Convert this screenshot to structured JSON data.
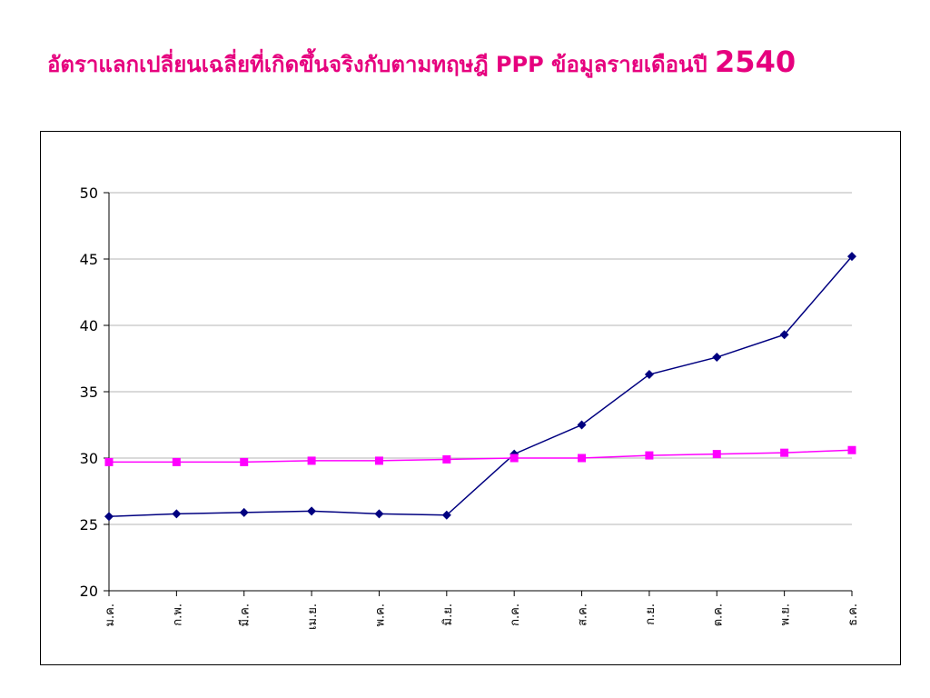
{
  "title": {
    "main": "อัตราแลกเปลี่ยนเฉลี่ยที่เกิดขึ้นจริงกับตามทฤษฎี PPP ข้อมูลรายเดือนปี ",
    "year": "2540"
  },
  "chart_data": {
    "type": "line",
    "title": "",
    "xlabel": "",
    "ylabel": "",
    "categories": [
      "ม.ค.",
      "ก.พ.",
      "มี.ค.",
      "เม.ย.",
      "พ.ค.",
      "มิ.ย.",
      "ก.ค.",
      "ส.ค.",
      "ก.ย.",
      "ต.ค.",
      "พ.ย.",
      "ธ.ค."
    ],
    "ylim": [
      20,
      50
    ],
    "yticks": [
      20,
      25,
      30,
      35,
      40,
      45,
      50
    ],
    "grid": true,
    "legend": "none",
    "series": [
      {
        "color": "#000080",
        "marker": "diamond",
        "values": [
          25.6,
          25.8,
          25.9,
          26.0,
          25.8,
          25.7,
          30.3,
          32.5,
          36.3,
          37.6,
          39.3,
          45.2
        ]
      },
      {
        "color": "#ff00ff",
        "marker": "square",
        "values": [
          29.7,
          29.7,
          29.7,
          29.8,
          29.8,
          29.9,
          30.0,
          30.0,
          30.2,
          30.3,
          30.4,
          30.6
        ]
      }
    ]
  }
}
